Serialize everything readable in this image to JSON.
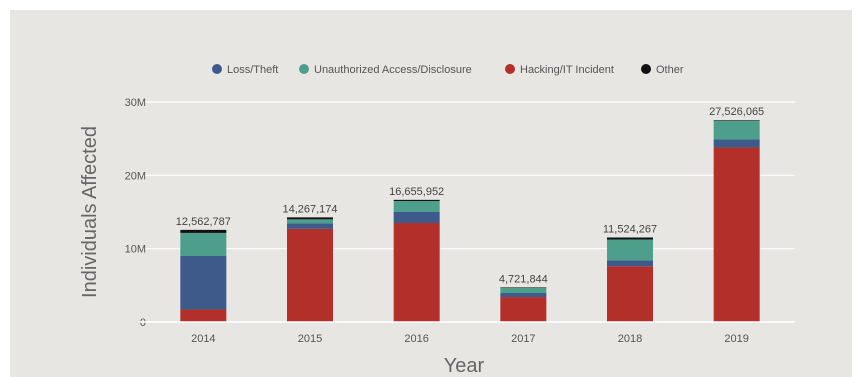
{
  "chart_data": {
    "type": "bar",
    "stacked": true,
    "title": "",
    "xlabel": "Year",
    "ylabel": "Individuals Affected",
    "categories": [
      "2014",
      "2015",
      "2016",
      "2017",
      "2018",
      "2019"
    ],
    "ylim": [
      0,
      30000000
    ],
    "yticks": [
      0,
      10000000,
      20000000,
      30000000
    ],
    "ytick_labels": [
      "0",
      "10M",
      "20M",
      "30M"
    ],
    "grid": true,
    "legend_position": "top",
    "series": [
      {
        "name": "Hacking/IT Incident",
        "color": "#b3302a",
        "values": [
          1700000,
          12700000,
          13500000,
          3400000,
          7600000,
          23800000
        ]
      },
      {
        "name": "Loss/Theft",
        "color": "#3d5a8a",
        "values": [
          7300000,
          750000,
          1500000,
          550000,
          800000,
          1100000
        ]
      },
      {
        "name": "Unauthorized Access/Disclosure",
        "color": "#4e9e8c",
        "values": [
          3150000,
          550000,
          1500000,
          700000,
          2850000,
          2550000
        ]
      },
      {
        "name": "Other",
        "color": "#111111",
        "values": [
          412787,
          267174,
          155952,
          71844,
          274267,
          76065
        ]
      }
    ],
    "legend_order": [
      "Loss/Theft",
      "Unauthorized Access/Disclosure",
      "Hacking/IT Incident",
      "Other"
    ],
    "totals": [
      12562787,
      14267174,
      16655952,
      4721844,
      11524267,
      27526065
    ],
    "total_labels": [
      "12,562,787",
      "14,267,174",
      "16,655,952",
      "4,721,844",
      "11,524,267",
      "27,526,065"
    ]
  }
}
